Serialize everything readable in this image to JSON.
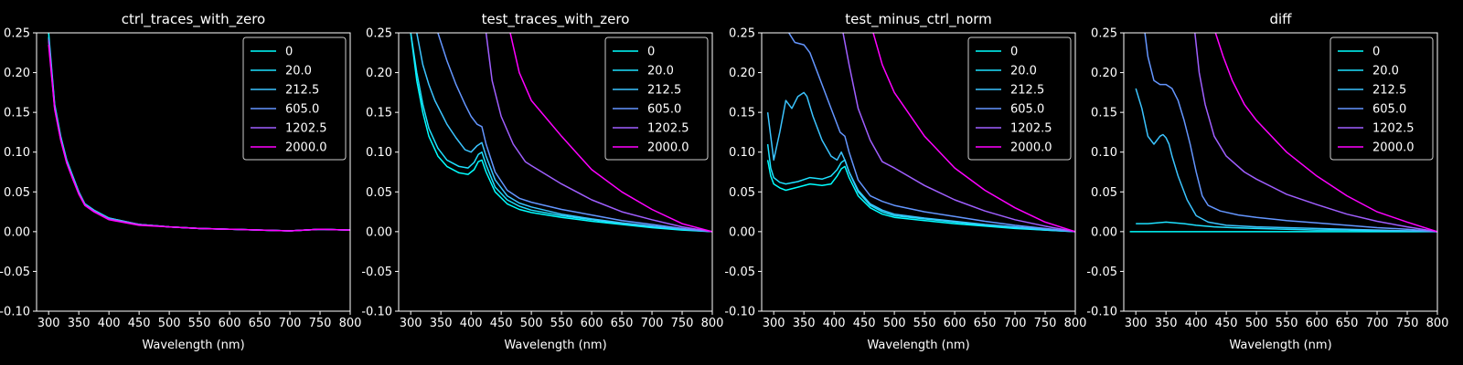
{
  "chart_data": [
    {
      "type": "line",
      "title": "ctrl_traces_with_zero",
      "xlabel": "Wavelength (nm)",
      "ylabel": "",
      "xlim": [
        280,
        800
      ],
      "ylim": [
        -0.1,
        0.25
      ],
      "xticks": [
        300,
        350,
        400,
        450,
        500,
        550,
        600,
        650,
        700,
        750,
        800
      ],
      "yticks": [
        -0.1,
        -0.05,
        0.0,
        0.05,
        0.1,
        0.15,
        0.2,
        0.25
      ],
      "legend": "top-right",
      "series": [
        {
          "name": "0",
          "color": "#00ffff",
          "x": [
            300,
            310,
            320,
            330,
            340,
            350,
            360,
            375,
            400,
            450,
            500,
            550,
            600,
            650,
            700,
            750,
            800
          ],
          "y": [
            0.25,
            0.16,
            0.12,
            0.09,
            0.07,
            0.05,
            0.035,
            0.027,
            0.017,
            0.009,
            0.006,
            0.004,
            0.003,
            0.002,
            0.001,
            0.003,
            0.002
          ]
        },
        {
          "name": "20.0",
          "color": "#1ee1ff",
          "x": [
            300,
            310,
            320,
            330,
            340,
            350,
            360,
            375,
            400,
            450,
            500,
            550,
            600,
            650,
            700,
            750,
            800
          ],
          "y": [
            0.245,
            0.158,
            0.118,
            0.089,
            0.069,
            0.05,
            0.035,
            0.027,
            0.017,
            0.009,
            0.006,
            0.004,
            0.003,
            0.002,
            0.001,
            0.003,
            0.002
          ]
        },
        {
          "name": "212.5",
          "color": "#3bc4ff",
          "x": [
            300,
            310,
            320,
            330,
            340,
            350,
            360,
            375,
            400,
            450,
            500,
            550,
            600,
            650,
            700,
            750,
            800
          ],
          "y": [
            0.243,
            0.157,
            0.117,
            0.088,
            0.068,
            0.049,
            0.034,
            0.026,
            0.016,
            0.009,
            0.006,
            0.004,
            0.003,
            0.002,
            0.001,
            0.003,
            0.002
          ]
        },
        {
          "name": "605.0",
          "color": "#6496ff",
          "x": [
            300,
            310,
            320,
            330,
            340,
            350,
            360,
            375,
            400,
            450,
            500,
            550,
            600,
            650,
            700,
            750,
            800
          ],
          "y": [
            0.242,
            0.156,
            0.117,
            0.088,
            0.068,
            0.049,
            0.034,
            0.026,
            0.016,
            0.009,
            0.006,
            0.004,
            0.003,
            0.002,
            0.001,
            0.003,
            0.002
          ]
        },
        {
          "name": "1202.5",
          "color": "#a05fff",
          "x": [
            300,
            310,
            320,
            330,
            340,
            350,
            360,
            375,
            400,
            450,
            500,
            550,
            600,
            650,
            700,
            750,
            800
          ],
          "y": [
            0.24,
            0.155,
            0.116,
            0.087,
            0.067,
            0.048,
            0.034,
            0.026,
            0.016,
            0.009,
            0.006,
            0.004,
            0.003,
            0.002,
            0.001,
            0.003,
            0.002
          ]
        },
        {
          "name": "2000.0",
          "color": "#ff00ff",
          "x": [
            300,
            310,
            320,
            330,
            340,
            350,
            360,
            375,
            400,
            450,
            500,
            550,
            600,
            650,
            700,
            750,
            800
          ],
          "y": [
            0.235,
            0.154,
            0.115,
            0.086,
            0.066,
            0.047,
            0.033,
            0.025,
            0.015,
            0.008,
            0.006,
            0.004,
            0.003,
            0.002,
            0.001,
            0.003,
            0.002
          ]
        }
      ]
    },
    {
      "type": "line",
      "title": "test_traces_with_zero",
      "xlabel": "Wavelength (nm)",
      "ylabel": "",
      "xlim": [
        280,
        800
      ],
      "ylim": [
        -0.1,
        0.25
      ],
      "xticks": [
        300,
        350,
        400,
        450,
        500,
        550,
        600,
        650,
        700,
        750,
        800
      ],
      "yticks": [
        -0.1,
        -0.05,
        0.0,
        0.05,
        0.1,
        0.15,
        0.2,
        0.25
      ],
      "legend": "top-right",
      "series": [
        {
          "name": "0",
          "color": "#00ffff",
          "x": [
            300,
            310,
            320,
            330,
            345,
            360,
            380,
            395,
            405,
            412,
            418,
            425,
            440,
            460,
            480,
            500,
            550,
            600,
            650,
            700,
            750,
            800
          ],
          "y": [
            0.25,
            0.19,
            0.15,
            0.12,
            0.095,
            0.082,
            0.074,
            0.072,
            0.078,
            0.088,
            0.09,
            0.075,
            0.05,
            0.035,
            0.028,
            0.024,
            0.018,
            0.013,
            0.009,
            0.005,
            0.002,
            0.0
          ]
        },
        {
          "name": "20.0",
          "color": "#1ee1ff",
          "x": [
            300,
            310,
            320,
            330,
            345,
            360,
            380,
            395,
            405,
            412,
            418,
            425,
            440,
            460,
            480,
            500,
            550,
            600,
            650,
            700,
            750,
            800
          ],
          "y": [
            0.25,
            0.2,
            0.16,
            0.13,
            0.105,
            0.09,
            0.082,
            0.08,
            0.087,
            0.097,
            0.1,
            0.084,
            0.056,
            0.04,
            0.032,
            0.027,
            0.02,
            0.015,
            0.01,
            0.006,
            0.003,
            0.0
          ]
        },
        {
          "name": "212.5",
          "color": "#3bc4ff",
          "x": [
            310,
            320,
            330,
            340,
            350,
            360,
            375,
            390,
            400,
            410,
            418,
            425,
            440,
            460,
            480,
            500,
            550,
            600,
            650,
            700,
            750,
            800
          ],
          "y": [
            0.25,
            0.21,
            0.185,
            0.165,
            0.15,
            0.135,
            0.118,
            0.103,
            0.1,
            0.108,
            0.112,
            0.095,
            0.065,
            0.045,
            0.036,
            0.031,
            0.022,
            0.016,
            0.011,
            0.007,
            0.003,
            0.0
          ]
        },
        {
          "name": "605.0",
          "color": "#6496ff",
          "x": [
            345,
            360,
            375,
            390,
            400,
            410,
            418,
            425,
            440,
            460,
            480,
            500,
            550,
            600,
            650,
            700,
            750,
            800
          ],
          "y": [
            0.25,
            0.215,
            0.185,
            0.16,
            0.145,
            0.135,
            0.132,
            0.11,
            0.075,
            0.052,
            0.042,
            0.037,
            0.028,
            0.021,
            0.014,
            0.009,
            0.004,
            0.0
          ]
        },
        {
          "name": "1202.5",
          "color": "#a05fff",
          "x": [
            425,
            435,
            450,
            470,
            490,
            500,
            550,
            600,
            650,
            700,
            750,
            800
          ],
          "y": [
            0.25,
            0.19,
            0.145,
            0.11,
            0.088,
            0.083,
            0.06,
            0.04,
            0.025,
            0.015,
            0.006,
            0.0
          ]
        },
        {
          "name": "2000.0",
          "color": "#ff00ff",
          "x": [
            465,
            480,
            500,
            550,
            600,
            650,
            700,
            750,
            800
          ],
          "y": [
            0.25,
            0.2,
            0.165,
            0.12,
            0.078,
            0.05,
            0.028,
            0.01,
            0.0
          ]
        }
      ]
    },
    {
      "type": "line",
      "title": "test_minus_ctrl_norm",
      "xlabel": "Wavelength (nm)",
      "ylabel": "",
      "xlim": [
        280,
        800
      ],
      "ylim": [
        -0.1,
        0.25
      ],
      "xticks": [
        300,
        350,
        400,
        450,
        500,
        550,
        600,
        650,
        700,
        750,
        800
      ],
      "yticks": [
        -0.1,
        -0.05,
        0.0,
        0.05,
        0.1,
        0.15,
        0.2,
        0.25
      ],
      "legend": "top-right",
      "series": [
        {
          "name": "0",
          "color": "#00ffff",
          "x": [
            290,
            295,
            300,
            310,
            320,
            340,
            360,
            380,
            395,
            405,
            412,
            418,
            425,
            440,
            460,
            480,
            500,
            550,
            600,
            650,
            700,
            750,
            800
          ],
          "y": [
            0.09,
            0.07,
            0.06,
            0.055,
            0.052,
            0.056,
            0.06,
            0.058,
            0.06,
            0.07,
            0.079,
            0.082,
            0.068,
            0.045,
            0.03,
            0.022,
            0.018,
            0.014,
            0.01,
            0.007,
            0.004,
            0.002,
            0.0
          ]
        },
        {
          "name": "20.0",
          "color": "#1ee1ff",
          "x": [
            290,
            295,
            300,
            310,
            320,
            340,
            360,
            380,
            395,
            405,
            412,
            418,
            425,
            440,
            460,
            480,
            500,
            550,
            600,
            650,
            700,
            750,
            800
          ],
          "y": [
            0.11,
            0.08,
            0.068,
            0.062,
            0.06,
            0.063,
            0.068,
            0.066,
            0.07,
            0.078,
            0.087,
            0.09,
            0.075,
            0.05,
            0.033,
            0.025,
            0.02,
            0.016,
            0.012,
            0.008,
            0.005,
            0.002,
            0.0
          ]
        },
        {
          "name": "212.5",
          "color": "#3bc4ff",
          "x": [
            290,
            295,
            300,
            310,
            320,
            330,
            340,
            350,
            355,
            365,
            380,
            395,
            405,
            412,
            418,
            425,
            440,
            460,
            480,
            500,
            550,
            600,
            650,
            700,
            750,
            800
          ],
          "y": [
            0.15,
            0.12,
            0.09,
            0.125,
            0.165,
            0.155,
            0.17,
            0.175,
            0.17,
            0.145,
            0.115,
            0.095,
            0.09,
            0.1,
            0.09,
            0.075,
            0.052,
            0.035,
            0.027,
            0.022,
            0.017,
            0.013,
            0.009,
            0.006,
            0.003,
            0.0
          ]
        },
        {
          "name": "605.0",
          "color": "#6496ff",
          "x": [
            325,
            335,
            350,
            360,
            370,
            380,
            390,
            400,
            410,
            418,
            425,
            440,
            460,
            480,
            500,
            550,
            600,
            650,
            700,
            750,
            800
          ],
          "y": [
            0.25,
            0.238,
            0.235,
            0.225,
            0.205,
            0.185,
            0.165,
            0.145,
            0.125,
            0.12,
            0.1,
            0.065,
            0.045,
            0.038,
            0.033,
            0.025,
            0.019,
            0.013,
            0.008,
            0.004,
            0.0
          ]
        },
        {
          "name": "1202.5",
          "color": "#a05fff",
          "x": [
            415,
            425,
            440,
            460,
            480,
            500,
            550,
            600,
            650,
            700,
            750,
            800
          ],
          "y": [
            0.25,
            0.21,
            0.155,
            0.115,
            0.088,
            0.08,
            0.058,
            0.04,
            0.026,
            0.015,
            0.007,
            0.0
          ]
        },
        {
          "name": "2000.0",
          "color": "#ff00ff",
          "x": [
            465,
            480,
            500,
            550,
            600,
            650,
            700,
            750,
            800
          ],
          "y": [
            0.25,
            0.21,
            0.175,
            0.12,
            0.08,
            0.052,
            0.03,
            0.012,
            0.0
          ]
        }
      ]
    },
    {
      "type": "line",
      "title": "diff",
      "xlabel": "Wavelength (nm)",
      "ylabel": "",
      "xlim": [
        280,
        800
      ],
      "ylim": [
        -0.1,
        0.25
      ],
      "xticks": [
        300,
        350,
        400,
        450,
        500,
        550,
        600,
        650,
        700,
        750,
        800
      ],
      "yticks": [
        -0.1,
        -0.05,
        0.0,
        0.05,
        0.1,
        0.15,
        0.2,
        0.25
      ],
      "legend": "top-right",
      "series": [
        {
          "name": "0",
          "color": "#00ffff",
          "x": [
            290,
            800
          ],
          "y": [
            0.0,
            0.0
          ]
        },
        {
          "name": "20.0",
          "color": "#1ee1ff",
          "x": [
            300,
            320,
            350,
            380,
            400,
            430,
            460,
            500,
            550,
            600,
            650,
            700,
            750,
            800
          ],
          "y": [
            0.01,
            0.01,
            0.012,
            0.01,
            0.008,
            0.006,
            0.005,
            0.004,
            0.003,
            0.002,
            0.002,
            0.001,
            0.001,
            0.0
          ]
        },
        {
          "name": "212.5",
          "color": "#3bc4ff",
          "x": [
            300,
            310,
            320,
            330,
            340,
            345,
            350,
            355,
            360,
            370,
            385,
            400,
            420,
            450,
            500,
            550,
            600,
            650,
            700,
            750,
            800
          ],
          "y": [
            0.18,
            0.155,
            0.12,
            0.11,
            0.12,
            0.122,
            0.118,
            0.11,
            0.095,
            0.07,
            0.04,
            0.02,
            0.012,
            0.008,
            0.006,
            0.005,
            0.004,
            0.003,
            0.002,
            0.001,
            0.0
          ]
        },
        {
          "name": "605.0",
          "color": "#6496ff",
          "x": [
            315,
            320,
            330,
            340,
            350,
            360,
            370,
            380,
            390,
            400,
            410,
            420,
            440,
            470,
            500,
            550,
            600,
            650,
            700,
            750,
            800
          ],
          "y": [
            0.25,
            0.22,
            0.19,
            0.185,
            0.185,
            0.18,
            0.165,
            0.14,
            0.11,
            0.075,
            0.045,
            0.033,
            0.026,
            0.021,
            0.018,
            0.014,
            0.011,
            0.008,
            0.005,
            0.003,
            0.0
          ]
        },
        {
          "name": "1202.5",
          "color": "#a05fff",
          "x": [
            398,
            405,
            415,
            430,
            450,
            480,
            500,
            550,
            600,
            650,
            700,
            750,
            800
          ],
          "y": [
            0.25,
            0.2,
            0.16,
            0.12,
            0.095,
            0.075,
            0.066,
            0.047,
            0.034,
            0.022,
            0.013,
            0.006,
            0.0
          ]
        },
        {
          "name": "2000.0",
          "color": "#ff00ff",
          "x": [
            432,
            445,
            460,
            480,
            500,
            550,
            600,
            650,
            700,
            750,
            800
          ],
          "y": [
            0.25,
            0.22,
            0.19,
            0.16,
            0.14,
            0.1,
            0.07,
            0.045,
            0.025,
            0.012,
            0.0
          ]
        }
      ]
    }
  ]
}
